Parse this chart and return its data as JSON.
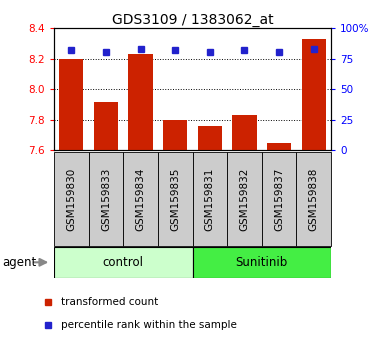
{
  "title": "GDS3109 / 1383062_at",
  "categories": [
    "GSM159830",
    "GSM159833",
    "GSM159834",
    "GSM159835",
    "GSM159831",
    "GSM159832",
    "GSM159837",
    "GSM159838"
  ],
  "red_values": [
    8.2,
    7.92,
    8.23,
    7.8,
    7.76,
    7.83,
    7.65,
    8.33
  ],
  "blue_values": [
    82,
    81,
    83,
    82,
    81,
    82,
    81,
    83
  ],
  "ylim_left": [
    7.6,
    8.4
  ],
  "ylim_right": [
    0,
    100
  ],
  "yticks_left": [
    7.6,
    7.8,
    8.0,
    8.2,
    8.4
  ],
  "yticks_right": [
    0,
    25,
    50,
    75,
    100
  ],
  "ytick_labels_right": [
    "0",
    "25",
    "50",
    "75",
    "100%"
  ],
  "grid_lines": [
    7.8,
    8.0,
    8.2
  ],
  "control_label": "control",
  "sunitinib_label": "Sunitinib",
  "agent_label": "agent",
  "legend_red": "transformed count",
  "legend_blue": "percentile rank within the sample",
  "bar_color": "#cc2200",
  "dot_color": "#2222cc",
  "bar_width": 0.7,
  "control_bg": "#ccffcc",
  "sunitinib_bg": "#44ee44",
  "gray_box_color": "#cccccc",
  "title_fontsize": 10,
  "tick_fontsize": 7.5,
  "label_fontsize": 8.5
}
